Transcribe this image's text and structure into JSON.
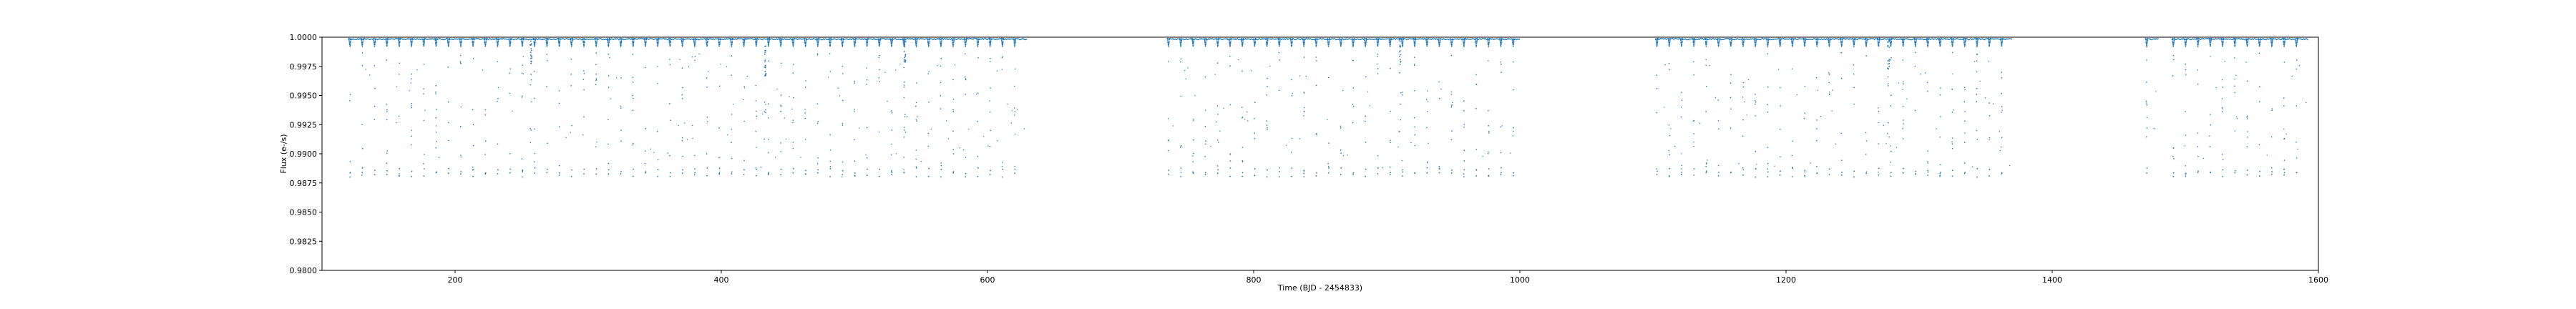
{
  "chart_data": {
    "type": "scatter",
    "title": "",
    "xlabel": "Time (BJD - 2454833)",
    "ylabel": "Flux (e-/s)",
    "xlim": [
      100,
      1600
    ],
    "ylim": [
      0.98,
      1.0
    ],
    "xticks": [
      200,
      400,
      600,
      800,
      1000,
      1200,
      1400,
      1600
    ],
    "yticks": [
      0.98,
      0.9825,
      0.985,
      0.9875,
      0.99,
      0.9925,
      0.995,
      0.9975,
      1.0
    ],
    "xtick_labels": [
      "200",
      "400",
      "600",
      "800",
      "1000",
      "1200",
      "1400",
      "1600"
    ],
    "ytick_labels": [
      "0.9800",
      "0.9825",
      "0.9850",
      "0.9875",
      "0.9900",
      "0.9925",
      "0.9950",
      "0.9975",
      "1.0000"
    ],
    "grid": false,
    "marker_color": "#1f77b4",
    "baseline_flux": 0.9999,
    "transit_period": 9.25,
    "transit_depth": 0.988,
    "transit_epochs": [
      [
        120,
        630
      ],
      [
        735,
        1000
      ],
      [
        1102,
        1370
      ],
      [
        1470,
        1480
      ],
      [
        1490,
        1592
      ]
    ],
    "secondary_dips": [
      {
        "x": 257,
        "depth": 0.9977
      },
      {
        "x": 433,
        "depth": 0.9966
      },
      {
        "x": 538,
        "depth": 0.9978
      },
      {
        "x": 910,
        "depth": 0.9975
      },
      {
        "x": 1277,
        "depth": 0.9968
      }
    ]
  }
}
